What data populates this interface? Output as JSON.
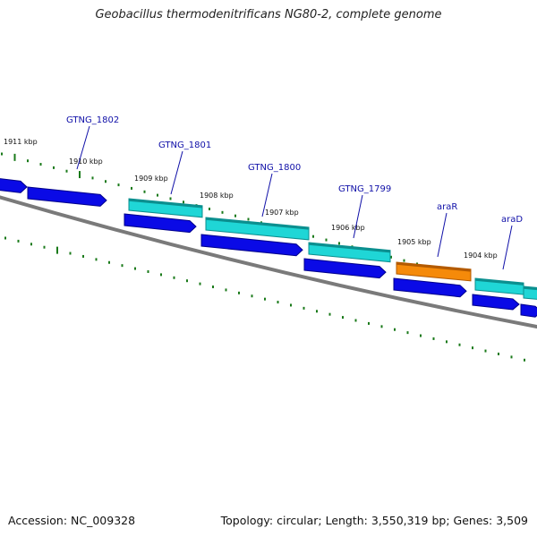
{
  "title": "Geobacillus thermodenitrificans NG80-2, complete genome",
  "accession": "Accession: NC_009328",
  "summary": "Topology: circular; Length: 3,550,319 bp; Genes: 3,509",
  "colors": {
    "label": "#1010a8",
    "tick": "#1a7a1a",
    "backbone": "#7a7a7a",
    "cds": "#0a0ae6",
    "gene_cyan": "#1fd6d6",
    "gene_orange": "#f58a0a"
  },
  "kbp_labels": [
    "1911 kbp",
    "1910 kbp",
    "1909 kbp",
    "1908 kbp",
    "1907 kbp",
    "1906 kbp",
    "1905 kbp",
    "1904 kbp"
  ],
  "gene_labels": [
    "GTNG_1802",
    "GTNG_1801",
    "GTNG_1800",
    "GTNG_1799",
    "araR",
    "araD"
  ]
}
